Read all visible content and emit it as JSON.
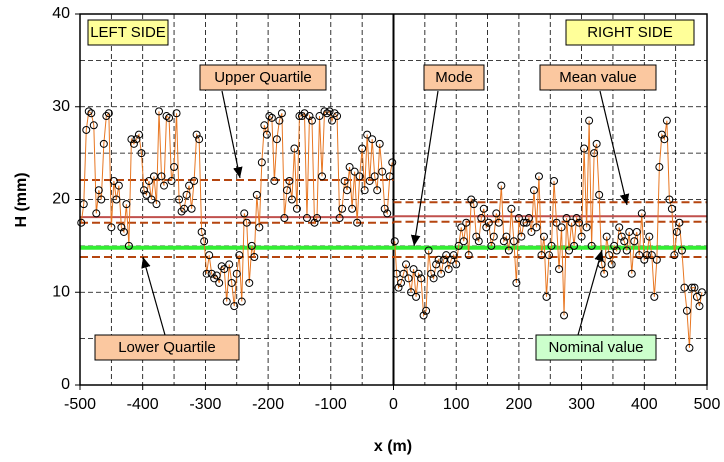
{
  "chart_data": {
    "type": "line",
    "xlabel": "x (m)",
    "ylabel": "H (mm)",
    "xlim": [
      -500,
      500
    ],
    "ylim": [
      0,
      40
    ],
    "xticks": [
      -500,
      -400,
      -300,
      -200,
      -100,
      0,
      100,
      200,
      300,
      400,
      500
    ],
    "yticks": [
      0,
      10,
      20,
      30,
      40
    ],
    "minor_xticks": [
      -450,
      -350,
      -250,
      -150,
      -50,
      50,
      150,
      250,
      350,
      450
    ],
    "minor_yticks": [
      5,
      15,
      25,
      35
    ],
    "grid": true,
    "series": [
      {
        "color": "#e87722",
        "x": [
          -498,
          -494,
          -490,
          -486,
          -482,
          -478,
          -474,
          -470,
          -466,
          -462,
          -458,
          -454,
          -450,
          -446,
          -442,
          -438,
          -434,
          -430,
          -426,
          -422,
          -418,
          -414,
          -410,
          -406,
          -402,
          -398,
          -394,
          -390,
          -386,
          -382,
          -378,
          -374,
          -370,
          -366,
          -362,
          -358,
          -354,
          -350,
          -346,
          -342,
          -338,
          -334,
          -330,
          -326,
          -322,
          -318,
          -314,
          -310,
          -306,
          -302,
          -298,
          -294,
          -290,
          -286,
          -282,
          -278,
          -274,
          -270,
          -266,
          -262,
          -258,
          -254,
          -250,
          -246,
          -242,
          -238,
          -234,
          -230,
          -226,
          -222,
          -218,
          -214,
          -210,
          -206,
          -202,
          -198,
          -194,
          -190,
          -186,
          -182,
          -178,
          -174,
          -170,
          -166,
          -162,
          -158,
          -154,
          -150,
          -146,
          -142,
          -138,
          -134,
          -130,
          -126,
          -122,
          -118,
          -114,
          -110,
          -106,
          -102,
          -98,
          -94,
          -90,
          -86,
          -82,
          -78,
          -74,
          -70,
          -66,
          -62,
          -58,
          -54,
          -50,
          -46,
          -42,
          -38,
          -34,
          -30,
          -26,
          -22,
          -18,
          -14,
          -10,
          -6,
          -2
        ],
        "values": [
          17.5,
          19.5,
          27.5,
          29.5,
          29.3,
          28,
          18.5,
          21,
          20,
          26,
          29,
          29.3,
          17,
          22,
          20,
          21.5,
          17,
          16.5,
          19.5,
          15,
          26.5,
          26,
          26.5,
          27,
          25,
          21,
          20.5,
          22,
          20,
          22.5,
          19.5,
          29.5,
          22.5,
          21.5,
          29,
          28.8,
          22,
          23.5,
          29.3,
          20,
          18.7,
          19,
          20.5,
          21.5,
          19,
          22,
          27,
          26.5,
          16.5,
          15.5,
          12,
          14,
          12,
          11.5,
          11.8,
          11,
          12.8,
          12.5,
          9,
          13,
          11,
          8.5,
          12,
          14,
          9,
          18.5,
          17.5,
          11,
          15,
          13.8,
          20.5,
          17,
          24,
          28,
          27,
          29,
          28.8,
          22,
          26.5,
          28.5,
          29.3,
          18,
          21,
          22,
          20,
          25.5,
          19,
          29,
          29,
          29.3,
          18,
          29,
          28.5,
          17.5,
          18,
          29,
          22.5,
          29.5,
          29.3,
          29.5,
          28.5,
          29.3,
          29,
          18,
          19,
          22,
          21,
          23.5,
          19,
          23,
          17.5,
          22.5,
          25.5,
          21,
          27,
          22,
          26.5,
          22.5,
          21,
          26,
          23,
          19,
          18.5,
          22.5,
          24
        ]
      },
      {
        "color": "#e87722",
        "x": [
          2,
          5,
          8,
          12,
          16,
          20,
          24,
          28,
          32,
          36,
          40,
          44,
          48,
          52,
          56,
          60,
          64,
          68,
          72,
          76,
          80,
          84,
          88,
          92,
          96,
          100,
          104,
          108,
          112,
          116,
          120,
          124,
          128,
          132,
          136,
          140,
          144,
          148,
          152,
          156,
          160,
          164,
          168,
          172,
          176,
          180,
          184,
          188,
          192,
          196,
          200,
          204,
          208,
          212,
          216,
          220,
          224,
          228,
          232,
          236,
          240,
          244,
          248,
          252,
          256,
          260,
          264,
          268,
          272,
          276,
          280,
          284,
          288,
          292,
          296,
          300,
          304,
          308,
          312,
          316,
          320,
          324,
          328,
          332,
          336,
          340,
          344,
          348,
          352,
          356,
          360,
          364,
          368,
          372,
          376,
          380,
          384,
          388,
          392,
          396,
          400,
          404,
          408,
          412,
          416,
          420,
          424,
          428,
          432,
          436,
          440,
          444,
          448,
          452,
          456,
          460,
          464,
          468,
          472,
          476,
          480,
          484,
          488,
          492
        ],
        "values": [
          15.5,
          12,
          10.5,
          11,
          12,
          13,
          11.5,
          10,
          12.5,
          9.5,
          12,
          11.5,
          7.5,
          8,
          14.5,
          12,
          11.5,
          13,
          13.5,
          12,
          13.5,
          14,
          12.5,
          13.5,
          14,
          13,
          15,
          17,
          15.5,
          17.5,
          14,
          20,
          19.5,
          16,
          15.5,
          18,
          19,
          17,
          17.5,
          15,
          16,
          18.5,
          17.5,
          21.5,
          15.5,
          16,
          14.5,
          19,
          15.5,
          11,
          18,
          16,
          17.5,
          17.5,
          18,
          16.5,
          21,
          17,
          22.5,
          14,
          16,
          9.5,
          14,
          15,
          22,
          17.5,
          12.5,
          17,
          7.5,
          18,
          14.5,
          17.5,
          15,
          18,
          17.5,
          16,
          25.5,
          17,
          28.5,
          15,
          25,
          26,
          20.5,
          13,
          12,
          16,
          14,
          13,
          15,
          14.5,
          17,
          16,
          15.5,
          14.5,
          16.5,
          12,
          15.5,
          16.5,
          14,
          18.5,
          13.5,
          14,
          16,
          14,
          9.5,
          13.5,
          23.5,
          27,
          26.5,
          28.5,
          20,
          19,
          14,
          16.5,
          17.5,
          14.5,
          10.5,
          8,
          4,
          10.5,
          10.5,
          9.5,
          8.5,
          10
        ]
      }
    ],
    "hlines": [
      {
        "y": 22.1,
        "x": [
          -500,
          0
        ],
        "color": "#b5450f",
        "dash": true
      },
      {
        "y": 18.1,
        "x": [
          -500,
          0
        ],
        "color": "#c0504d",
        "dash": false
      },
      {
        "y": 17.5,
        "x": [
          -500,
          0
        ],
        "color": "#b5450f",
        "dash": true
      },
      {
        "y": 13.8,
        "x": [
          -500,
          0
        ],
        "color": "#b5450f",
        "dash": true
      },
      {
        "y": 19.7,
        "x": [
          0,
          500
        ],
        "color": "#b5450f",
        "dash": true
      },
      {
        "y": 18.2,
        "x": [
          0,
          500
        ],
        "color": "#c0504d",
        "dash": false
      },
      {
        "y": 17.6,
        "x": [
          0,
          500
        ],
        "color": "#b5450f",
        "dash": true
      },
      {
        "y": 13.8,
        "x": [
          0,
          500
        ],
        "color": "#b5450f",
        "dash": true
      },
      {
        "y": 14.8,
        "x": [
          -500,
          500
        ],
        "color": "#33ee33",
        "dash": false,
        "thick": true
      }
    ],
    "vline": 0,
    "annotations": [
      {
        "text": "LEFT SIDE",
        "color": "#ffff99"
      },
      {
        "text": "RIGHT SIDE",
        "color": "#ffff99"
      },
      {
        "text": "Upper Quartile",
        "color": "#fbc8a0"
      },
      {
        "text": "Mode",
        "color": "#fbc8a0"
      },
      {
        "text": "Mean value",
        "color": "#fbc8a0"
      },
      {
        "text": "Lower Quartile",
        "color": "#fbc8a0"
      },
      {
        "text": "Nominal value",
        "color": "#ccffcc"
      }
    ]
  }
}
